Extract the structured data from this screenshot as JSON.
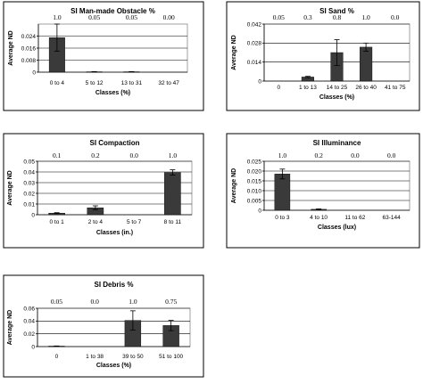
{
  "chart_data": [
    {
      "id": "mmo",
      "type": "bar",
      "title": "SI Man-made Obstacle %",
      "xlabel": "Classes (%)",
      "ylabel": "Average ND",
      "categories": [
        "0 to 4",
        "5 to 12",
        "13 to 31",
        "32 to 47"
      ],
      "values": [
        0.023,
        0.0003,
        0.0003,
        0.0
      ],
      "errors": [
        0.009,
        0.0001,
        0.0001,
        0.0
      ],
      "top_labels": [
        "1.0",
        "0.05",
        "0.05",
        "0.00"
      ],
      "yticks": [
        "0",
        "0.008",
        "0.016",
        "0.024"
      ],
      "ylim": [
        0,
        0.032
      ],
      "grid": true
    },
    {
      "id": "sand",
      "type": "bar",
      "title": "SI Sand %",
      "xlabel": "Classes (%)",
      "ylabel": "Average ND",
      "categories": [
        "0",
        "1 to 13",
        "14 to 25",
        "26 to 40",
        "41 to 75"
      ],
      "values": [
        0.0,
        0.003,
        0.021,
        0.025,
        0.0
      ],
      "errors": [
        0.0,
        0.0005,
        0.0095,
        0.003,
        0.0
      ],
      "top_labels": [
        "0.05",
        "0.3",
        "0.8",
        "1.0",
        "0.0"
      ],
      "yticks": [
        "0",
        "0.014",
        "0.028",
        "0.042"
      ],
      "ylim": [
        0,
        0.042
      ],
      "grid": true
    },
    {
      "id": "compaction",
      "type": "bar",
      "title": "SI Compaction",
      "xlabel": "Classes (in.)",
      "ylabel": "Average ND",
      "categories": [
        "0 to 1",
        "2 to 4",
        "5 to 7",
        "8 to 11"
      ],
      "values": [
        0.0015,
        0.0065,
        0.0,
        0.0395
      ],
      "errors": [
        0.0004,
        0.0018,
        0.0,
        0.0025
      ],
      "top_labels": [
        "0.1",
        "0.2",
        "0.0",
        "1.0"
      ],
      "yticks": [
        "0",
        "0.01",
        "0.02",
        "0.03",
        "0.04",
        "0.05"
      ],
      "ylim": [
        0,
        0.05
      ],
      "grid": true
    },
    {
      "id": "illuminance",
      "type": "bar",
      "title": "SI Illuminance",
      "xlabel": "Classes (lux)",
      "ylabel": "Average ND",
      "categories": [
        "0 to 3",
        "4 to 10",
        "11 to 62",
        "63-144"
      ],
      "values": [
        0.0185,
        0.0005,
        0.0,
        0.0
      ],
      "errors": [
        0.0025,
        0.0002,
        0.0,
        0.0
      ],
      "top_labels": [
        "1.0",
        "0.2",
        "0.0",
        "0.0"
      ],
      "yticks": [
        "0",
        "0.005",
        "0.010",
        "0.015",
        "0.020",
        "0.025"
      ],
      "ylim": [
        0,
        0.025
      ],
      "grid": true
    },
    {
      "id": "debris",
      "type": "bar",
      "title": "SI Debris %",
      "xlabel": "Classes (%)",
      "ylabel": "Average ND",
      "categories": [
        "0",
        "1 to 38",
        "39 to 50",
        "51 to 100"
      ],
      "values": [
        0.0008,
        0.0,
        0.041,
        0.033
      ],
      "errors": [
        0.0002,
        0.0,
        0.015,
        0.008
      ],
      "top_labels": [
        "0.05",
        "0.0",
        "1.0",
        "0.75"
      ],
      "yticks": [
        "0",
        "0.02",
        "0.04",
        "0.06"
      ],
      "ylim": [
        0,
        0.06
      ],
      "grid": true
    }
  ]
}
